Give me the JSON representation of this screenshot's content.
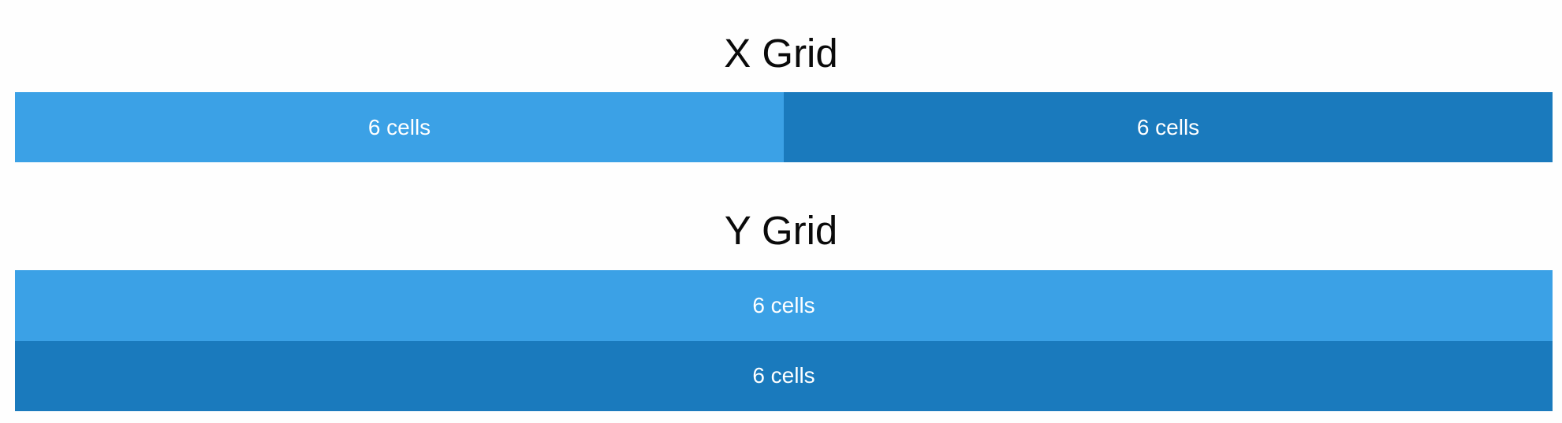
{
  "x_grid": {
    "title": "X Grid",
    "cells": [
      {
        "label": "6 cells"
      },
      {
        "label": "6 cells"
      }
    ]
  },
  "y_grid": {
    "title": "Y Grid",
    "cells": [
      {
        "label": "6 cells"
      },
      {
        "label": "6 cells"
      }
    ]
  },
  "colors": {
    "cell_light": "#3ba1e6",
    "cell_dark": "#1a7abd",
    "title_text": "#0a0a0a",
    "cell_text": "#ffffff",
    "background": "#fefefe"
  }
}
